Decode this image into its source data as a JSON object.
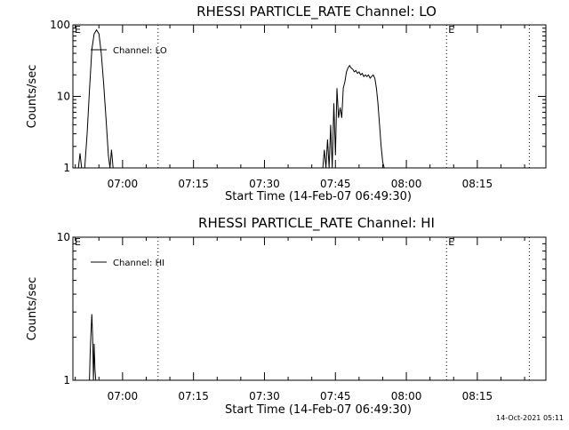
{
  "chart_data": [
    {
      "type": "line",
      "title": "RHESSI PARTICLE_RATE Channel: LO",
      "xlabel": "Start Time (14-Feb-07 06:49:30)",
      "ylabel": "Counts/sec",
      "yscale": "log",
      "ylim": [
        1,
        100
      ],
      "xlim": [
        "06:49:30",
        "08:29:30"
      ],
      "x_ticks": [
        "07:00",
        "07:15",
        "07:30",
        "07:45",
        "08:00",
        "08:15"
      ],
      "y_ticks": [
        "1",
        "10",
        "100"
      ],
      "legend": {
        "entries": [
          "Channel: LO"
        ],
        "placement": "top-left"
      },
      "markers": [
        {
          "time": "06:49:30",
          "label": "E",
          "line": false
        },
        {
          "time": "07:07:30",
          "label": "",
          "line": true
        },
        {
          "time": "08:08:30",
          "label": "E",
          "line": true
        },
        {
          "time": "08:26:00",
          "label": "",
          "line": true
        }
      ],
      "series": [
        {
          "name": "Channel: LO",
          "points": [
            [
              "06:50:40",
              1
            ],
            [
              "06:51:00",
              1.6
            ],
            [
              "06:51:20",
              1
            ],
            [
              "06:52:00",
              1
            ],
            [
              "06:52:30",
              3
            ],
            [
              "06:53:00",
              12
            ],
            [
              "06:53:30",
              45
            ],
            [
              "06:54:00",
              75
            ],
            [
              "06:54:30",
              85
            ],
            [
              "06:55:00",
              75
            ],
            [
              "06:55:30",
              40
            ],
            [
              "06:56:00",
              15
            ],
            [
              "06:56:30",
              5
            ],
            [
              "06:57:00",
              1.5
            ],
            [
              "06:57:20",
              1
            ],
            [
              "06:57:40",
              1.8
            ],
            [
              "06:58:00",
              1
            ],
            [
              "07:42:20",
              1
            ],
            [
              "07:42:40",
              1.8
            ],
            [
              "07:43:00",
              1
            ],
            [
              "07:43:20",
              2.5
            ],
            [
              "07:43:40",
              1
            ],
            [
              "07:44:00",
              4
            ],
            [
              "07:44:20",
              1
            ],
            [
              "07:44:40",
              8
            ],
            [
              "07:45:00",
              1.5
            ],
            [
              "07:45:20",
              13
            ],
            [
              "07:45:40",
              5
            ],
            [
              "07:46:00",
              7
            ],
            [
              "07:46:20",
              5
            ],
            [
              "07:46:40",
              13
            ],
            [
              "07:47:00",
              16
            ],
            [
              "07:47:20",
              22
            ],
            [
              "07:47:40",
              25
            ],
            [
              "07:48:00",
              27
            ],
            [
              "07:48:20",
              25
            ],
            [
              "07:48:40",
              24
            ],
            [
              "07:49:00",
              22
            ],
            [
              "07:49:20",
              23
            ],
            [
              "07:49:40",
              21
            ],
            [
              "07:50:00",
              22
            ],
            [
              "07:50:20",
              20
            ],
            [
              "07:50:40",
              21
            ],
            [
              "07:51:00",
              19
            ],
            [
              "07:51:20",
              20
            ],
            [
              "07:51:40",
              19
            ],
            [
              "07:52:00",
              20
            ],
            [
              "07:52:20",
              18
            ],
            [
              "07:52:40",
              19
            ],
            [
              "07:53:00",
              20
            ],
            [
              "07:53:20",
              18
            ],
            [
              "07:53:40",
              13
            ],
            [
              "07:54:00",
              8
            ],
            [
              "07:54:20",
              4
            ],
            [
              "07:54:40",
              2
            ],
            [
              "07:55:00",
              1.2
            ],
            [
              "07:55:20",
              1
            ]
          ]
        }
      ]
    },
    {
      "type": "line",
      "title": "RHESSI PARTICLE_RATE Channel: HI",
      "xlabel": "Start Time (14-Feb-07 06:49:30)",
      "ylabel": "Counts/sec",
      "yscale": "log",
      "ylim": [
        1,
        10
      ],
      "xlim": [
        "06:49:30",
        "08:29:30"
      ],
      "x_ticks": [
        "07:00",
        "07:15",
        "07:30",
        "07:45",
        "08:00",
        "08:15"
      ],
      "y_ticks": [
        "1",
        "10"
      ],
      "legend": {
        "entries": [
          "Channel: HI"
        ],
        "placement": "top-left"
      },
      "markers": [
        {
          "time": "06:49:30",
          "label": "E",
          "line": false
        },
        {
          "time": "07:07:30",
          "label": "",
          "line": true
        },
        {
          "time": "08:08:30",
          "label": "E",
          "line": true
        },
        {
          "time": "08:26:00",
          "label": "",
          "line": true
        }
      ],
      "series": [
        {
          "name": "Channel: HI",
          "points": [
            [
              "06:53:00",
              1
            ],
            [
              "06:53:10",
              1.6
            ],
            [
              "06:53:20",
              2.2
            ],
            [
              "06:53:30",
              2.9
            ],
            [
              "06:53:40",
              2.0
            ],
            [
              "06:53:50",
              1
            ],
            [
              "06:54:00",
              1.8
            ],
            [
              "06:54:10",
              1.2
            ],
            [
              "06:54:20",
              1
            ]
          ]
        }
      ]
    }
  ],
  "footer": {
    "timestamp": "14-Oct-2021 05:11"
  }
}
